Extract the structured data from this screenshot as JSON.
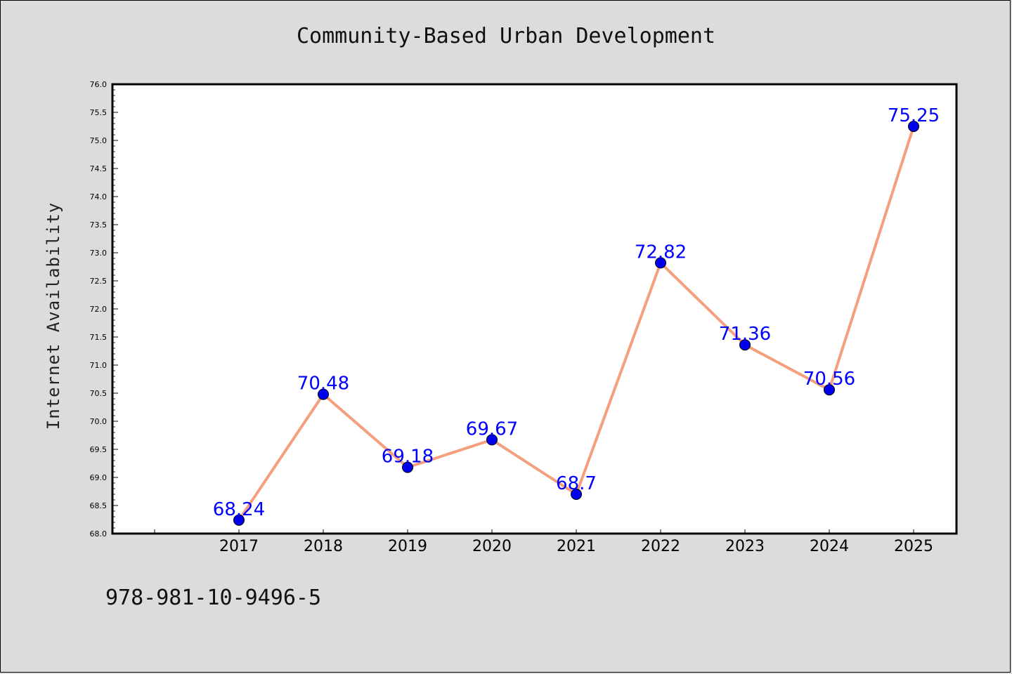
{
  "chart_data": {
    "type": "line",
    "title": "Community-Based Urban Development",
    "xlabel": "",
    "ylabel": "Internet Availability",
    "categories": [
      "2017",
      "2018",
      "2019",
      "2020",
      "2021",
      "2022",
      "2023",
      "2024",
      "2025"
    ],
    "values": [
      68.24,
      70.48,
      69.18,
      69.67,
      68.7,
      72.82,
      71.36,
      70.56,
      75.25
    ],
    "data_labels": [
      "68.24",
      "70.48",
      "69.18",
      "69.67",
      "68.7",
      "72.82",
      "71.36",
      "70.56",
      "75.25"
    ],
    "ylim": [
      68.0,
      76.0
    ],
    "yticks": [
      "68.0",
      "68.5",
      "69.0",
      "69.5",
      "70.0",
      "70.5",
      "71.0",
      "71.5",
      "72.0",
      "72.5",
      "73.0",
      "73.5",
      "74.0",
      "74.5",
      "75.0",
      "75.5",
      "76.0"
    ],
    "grid": false,
    "line_color": "#f4a07f",
    "marker_color": "#0000ee",
    "label_color": "#0000ff"
  },
  "footer": {
    "isbn": "978-981-10-9496-5"
  }
}
